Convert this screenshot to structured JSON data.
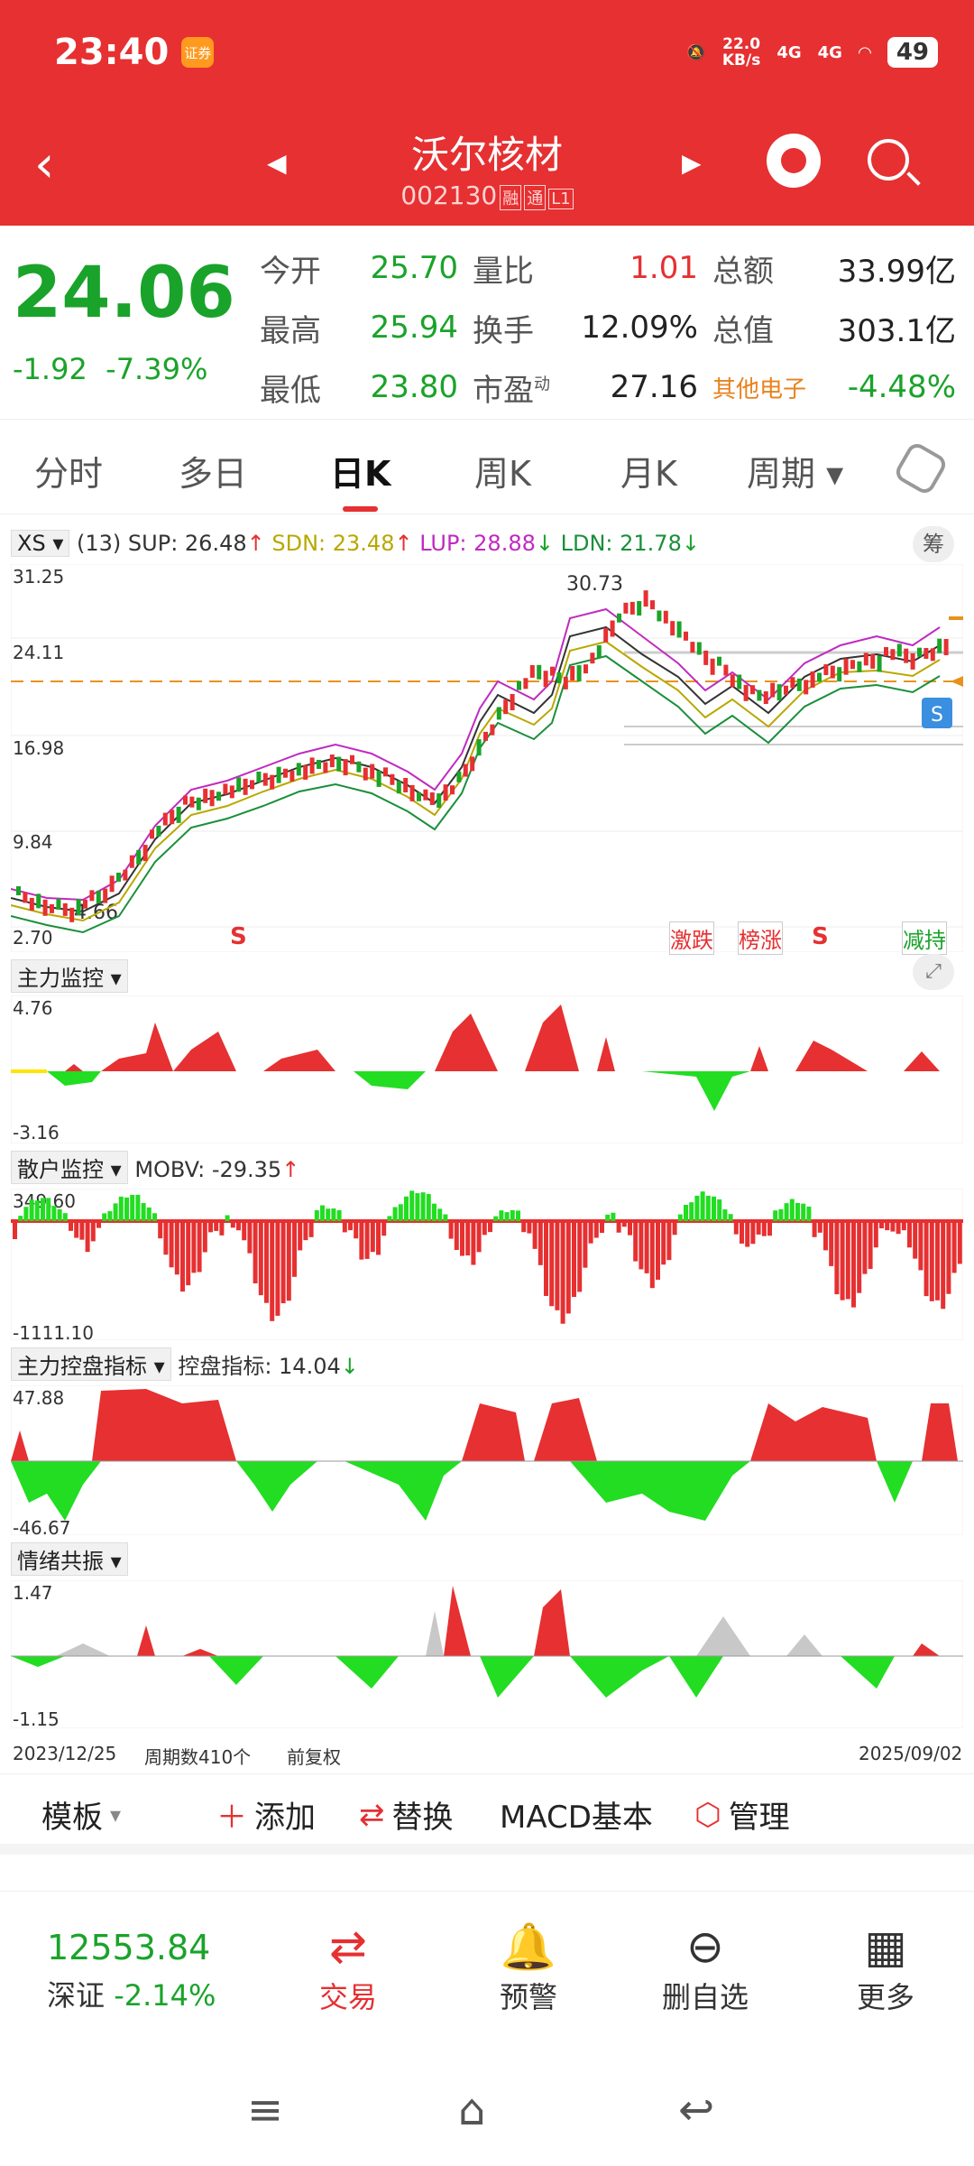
{
  "status": {
    "time": "23:40",
    "badge": "证券",
    "speed_top": "22.0",
    "speed_bot": "KB/s",
    "net1": "4G",
    "net2": "4G",
    "battery": "49"
  },
  "nav": {
    "title": "沃尔核材",
    "code": "002130",
    "tags": [
      "融",
      "通",
      "L1"
    ]
  },
  "quote": {
    "price": "24.06",
    "change": "-1.92",
    "pct": "-7.39%",
    "rows": [
      {
        "l1": "今开",
        "v1": "25.70",
        "l2": "量比",
        "v2": "1.01",
        "l3": "总额",
        "v3": "33.99亿"
      },
      {
        "l1": "最高",
        "v1": "25.94",
        "l2": "换手",
        "v2": "12.09%",
        "l3": "总值",
        "v3": "303.1亿"
      },
      {
        "l1": "最低",
        "v1": "23.80",
        "l2": "市盈",
        "sup": "动",
        "v2": "27.16",
        "l3": "其他电子",
        "v3": "-4.48%"
      }
    ]
  },
  "tabs": [
    "分时",
    "多日",
    "日K",
    "周K",
    "月K",
    "周期"
  ],
  "kline": {
    "dropdown": "XS",
    "period": "(13)",
    "sup": "SUP: 26.48",
    "sdn": "SDN: 23.48",
    "lup": "LUP: 28.88",
    "ldn": "LDN: 21.78",
    "chip": "筹",
    "y_labels": [
      "31.25",
      "24.11",
      "16.98",
      "9.84",
      "2.70"
    ],
    "max_label": "30.73",
    "min_label": "4.66",
    "signals": [
      "激跌",
      "榜涨",
      "减持"
    ],
    "s_mark": "S"
  },
  "panel1": {
    "name": "主力监控",
    "top": "4.76",
    "bottom": "-3.16"
  },
  "panel2": {
    "name": "散户监控",
    "value": "MOBV: -29.35",
    "top": "349.60",
    "bottom": "-1111.10"
  },
  "panel3": {
    "name": "主力控盘指标",
    "value": "控盘指标: 14.04",
    "top": "47.88",
    "bottom": "-46.67"
  },
  "panel4": {
    "name": "情绪共振",
    "top": "1.47",
    "bottom": "-1.15"
  },
  "footer_axis": {
    "start": "2023/12/25",
    "count": "周期数410个",
    "adj": "前复权",
    "end": "2025/09/02"
  },
  "toolbar": {
    "template": "模板",
    "add": "添加",
    "replace": "替换",
    "macd": "MACD基本",
    "manage": "管理"
  },
  "bottom": {
    "index_value": "12553.84",
    "index_name": "深证",
    "index_pct": "-2.14%",
    "trade": "交易",
    "alert": "预警",
    "delete": "删自选",
    "more": "更多"
  },
  "colors": {
    "red": "#e63031",
    "green": "#1aa32a"
  }
}
